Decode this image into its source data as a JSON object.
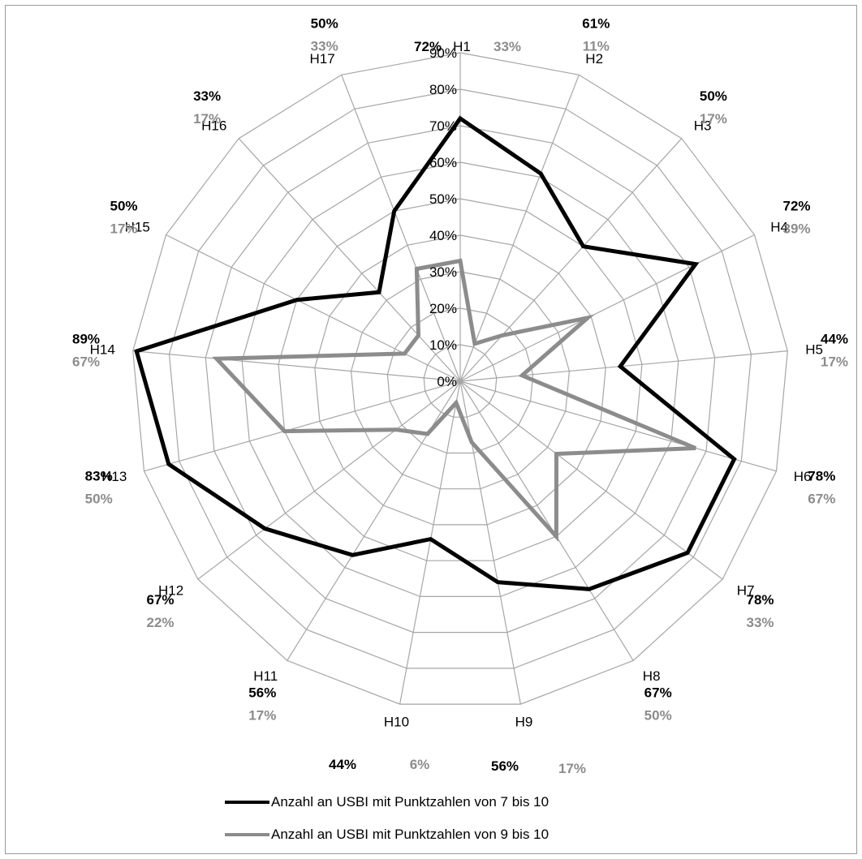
{
  "chart_data": {
    "type": "radar",
    "categories": [
      "H1",
      "H2",
      "H3",
      "H4",
      "H5",
      "H6",
      "H7",
      "H8",
      "H9",
      "H10",
      "H11",
      "H12",
      "H13",
      "H14",
      "H15",
      "H16",
      "H17"
    ],
    "rlim": [
      0,
      90
    ],
    "ticks": [
      "0%",
      "10%",
      "20%",
      "30%",
      "40%",
      "50%",
      "60%",
      "70%",
      "80%",
      "90%"
    ],
    "tick_values": [
      0,
      10,
      20,
      30,
      40,
      50,
      60,
      70,
      80,
      90
    ],
    "grid": true,
    "legend_position": "bottom",
    "series": [
      {
        "name": "Anzahl an USBI mit Punktzahlen von 7 bis 10",
        "color": "#000000",
        "values": [
          72,
          61,
          50,
          72,
          44,
          78,
          78,
          67,
          56,
          44,
          56,
          67,
          83,
          89,
          50,
          33,
          50
        ],
        "labels": [
          "72%",
          "61%",
          "50%",
          "72%",
          "44%",
          "78%",
          "78%",
          "67%",
          "56%",
          "44%",
          "56%",
          "67%",
          "83%",
          "89%",
          "50%",
          "33%",
          "50%"
        ]
      },
      {
        "name": "Anzahl an USBI mit Punktzahlen von 9 bis 10",
        "color": "#8c8c8c",
        "values": [
          33,
          11,
          17,
          39,
          17,
          67,
          33,
          50,
          17,
          6,
          17,
          22,
          50,
          67,
          17,
          17,
          33
        ],
        "labels": [
          "33%",
          "11%",
          "17%",
          "39%",
          "17%",
          "67%",
          "33%",
          "50%",
          "17%",
          "6%",
          "17%",
          "22%",
          "50%",
          "67%",
          "17%",
          "17%",
          "33%"
        ]
      }
    ]
  },
  "legend": {
    "items": [
      {
        "label": "Anzahl an USBI mit Punktzahlen von 7 bis 10",
        "color": "#000000"
      },
      {
        "label": "Anzahl an USBI mit Punktzahlen von 9 bis 10",
        "color": "#8c8c8c"
      }
    ]
  }
}
